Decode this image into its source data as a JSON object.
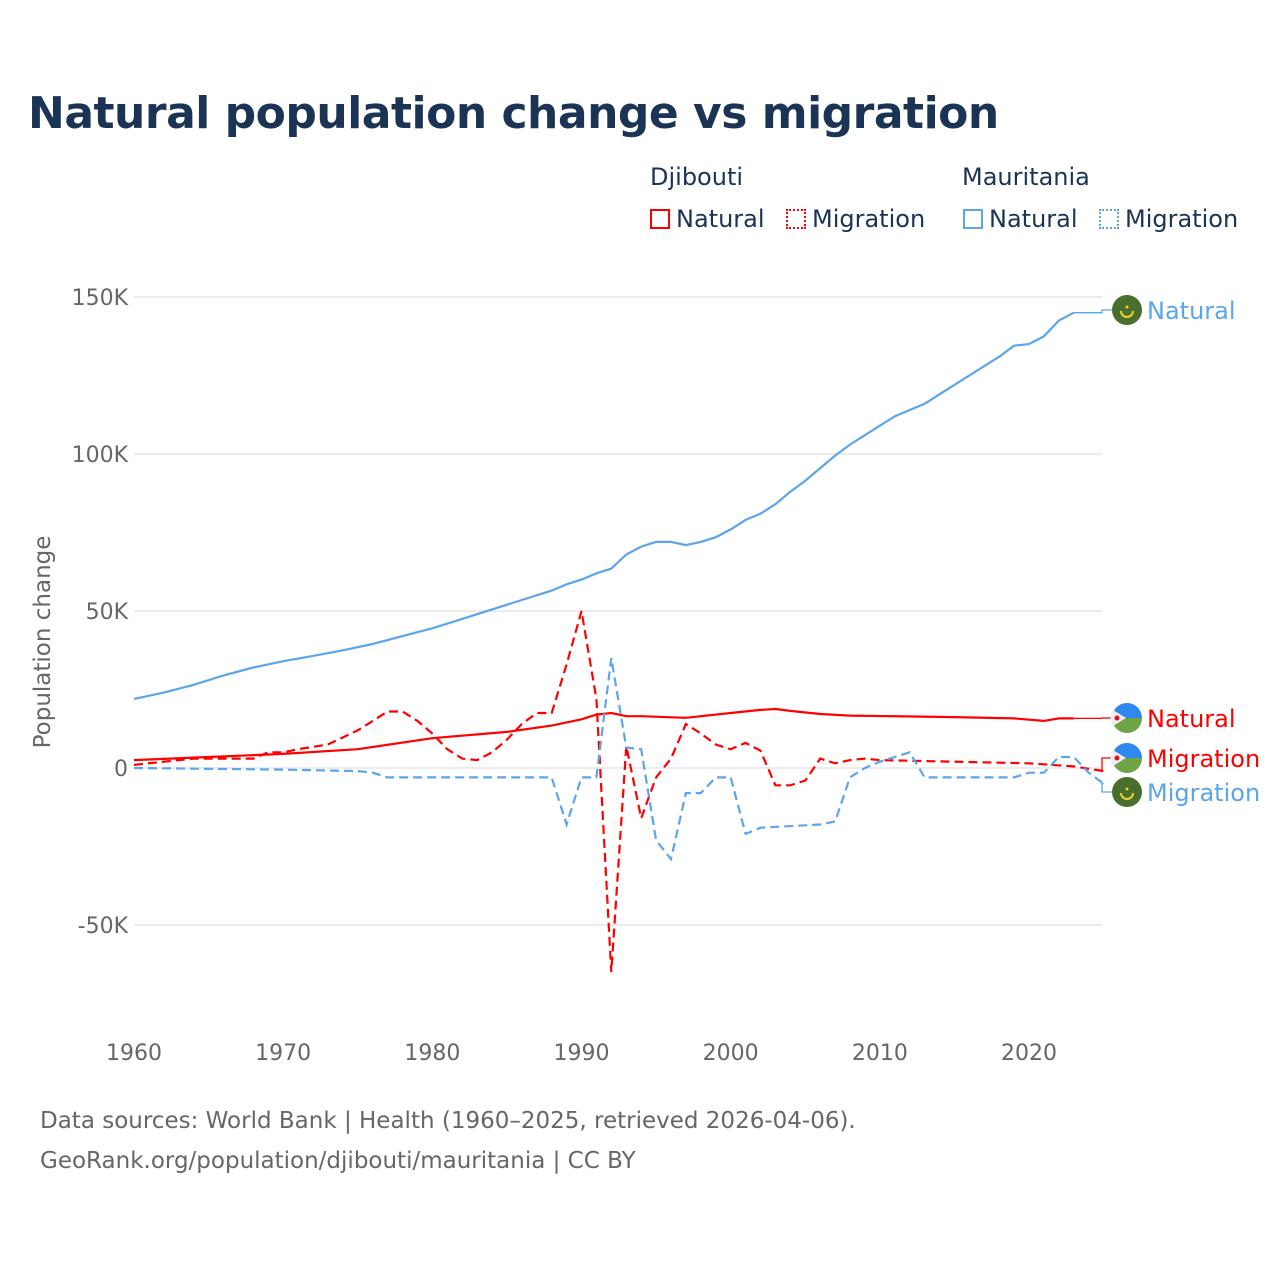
{
  "colors": {
    "djibouti": "#ff0000",
    "mauritania": "#5aa5ec",
    "title": "#1b3354"
  },
  "chart_data": {
    "type": "line",
    "title": "Natural population change vs migration",
    "xlabel": "",
    "ylabel": "Population change",
    "xlim": [
      1960,
      2025
    ],
    "ylim": [
      -70000,
      160000
    ],
    "x_ticks": [
      "1960",
      "1970",
      "1980",
      "1990",
      "2000",
      "2010",
      "2020"
    ],
    "y_ticks": [
      {
        "v": 150000,
        "label": "150K"
      },
      {
        "v": 100000,
        "label": "100K"
      },
      {
        "v": 50000,
        "label": "50K"
      },
      {
        "v": 0,
        "label": "0"
      },
      {
        "v": -50000,
        "label": "-50K"
      }
    ],
    "grid": true,
    "legend": {
      "placement": "top-right",
      "groups": [
        {
          "name": "Djibouti",
          "items": [
            "Natural",
            "Migration"
          ]
        },
        {
          "name": "Mauritania",
          "items": [
            "Natural",
            "Migration"
          ]
        }
      ]
    },
    "series": [
      {
        "name": "Mauritania Natural",
        "country": "mauritania",
        "style": "solid",
        "end_label": "Natural",
        "points": [
          [
            1960,
            22000
          ],
          [
            1962,
            24000
          ],
          [
            1964,
            26500
          ],
          [
            1966,
            29500
          ],
          [
            1968,
            32000
          ],
          [
            1970,
            34000
          ],
          [
            1972,
            35700
          ],
          [
            1974,
            37500
          ],
          [
            1976,
            39500
          ],
          [
            1978,
            42000
          ],
          [
            1980,
            44500
          ],
          [
            1982,
            47500
          ],
          [
            1984,
            50500
          ],
          [
            1986,
            53500
          ],
          [
            1988,
            56500
          ],
          [
            1989,
            58500
          ],
          [
            1990,
            60000
          ],
          [
            1991,
            62000
          ],
          [
            1992,
            63500
          ],
          [
            1993,
            68000
          ],
          [
            1994,
            70500
          ],
          [
            1995,
            72000
          ],
          [
            1996,
            72000
          ],
          [
            1997,
            71000
          ],
          [
            1998,
            72000
          ],
          [
            1999,
            73500
          ],
          [
            2000,
            76000
          ],
          [
            2001,
            79000
          ],
          [
            2002,
            81000
          ],
          [
            2003,
            84000
          ],
          [
            2004,
            88000
          ],
          [
            2005,
            91500
          ],
          [
            2006,
            95500
          ],
          [
            2007,
            99500
          ],
          [
            2008,
            103000
          ],
          [
            2009,
            106000
          ],
          [
            2010,
            109000
          ],
          [
            2011,
            112000
          ],
          [
            2012,
            114000
          ],
          [
            2013,
            116000
          ],
          [
            2014,
            119000
          ],
          [
            2015,
            122000
          ],
          [
            2016,
            125000
          ],
          [
            2017,
            128000
          ],
          [
            2018,
            131000
          ],
          [
            2019,
            134500
          ],
          [
            2020,
            135000
          ],
          [
            2021,
            137500
          ],
          [
            2022,
            142500
          ],
          [
            2023,
            145000
          ]
        ]
      },
      {
        "name": "Djibouti Natural",
        "country": "djibouti",
        "style": "solid",
        "end_label": "Natural",
        "points": [
          [
            1960,
            2500
          ],
          [
            1965,
            3500
          ],
          [
            1970,
            4500
          ],
          [
            1975,
            6000
          ],
          [
            1980,
            9500
          ],
          [
            1985,
            11500
          ],
          [
            1988,
            13500
          ],
          [
            1990,
            15500
          ],
          [
            1991,
            17000
          ],
          [
            1992,
            17500
          ],
          [
            1993,
            16500
          ],
          [
            1994,
            16500
          ],
          [
            1997,
            16000
          ],
          [
            2000,
            17500
          ],
          [
            2002,
            18500
          ],
          [
            2003,
            18800
          ],
          [
            2004,
            18200
          ],
          [
            2006,
            17200
          ],
          [
            2008,
            16700
          ],
          [
            2015,
            16200
          ],
          [
            2019,
            15800
          ],
          [
            2021,
            15000
          ],
          [
            2022,
            15800
          ],
          [
            2023,
            15800
          ]
        ]
      },
      {
        "name": "Djibouti Migration",
        "country": "djibouti",
        "style": "dashed",
        "end_label": "Migration",
        "points": [
          [
            1960,
            1000
          ],
          [
            1962,
            2000
          ],
          [
            1964,
            3000
          ],
          [
            1968,
            3000
          ],
          [
            1969,
            5000
          ],
          [
            1970,
            5000
          ],
          [
            1971,
            6000
          ],
          [
            1973,
            7500
          ],
          [
            1975,
            12000
          ],
          [
            1976,
            15000
          ],
          [
            1977,
            18000
          ],
          [
            1978,
            18000
          ],
          [
            1979,
            15000
          ],
          [
            1980,
            11000
          ],
          [
            1981,
            6000
          ],
          [
            1982,
            3000
          ],
          [
            1983,
            2500
          ],
          [
            1984,
            5000
          ],
          [
            1985,
            9000
          ],
          [
            1986,
            14000
          ],
          [
            1987,
            17500
          ],
          [
            1988,
            17500
          ],
          [
            1989,
            33000
          ],
          [
            1990,
            50000
          ],
          [
            1991,
            22000
          ],
          [
            1992,
            -65000
          ],
          [
            1993,
            7000
          ],
          [
            1994,
            -16000
          ],
          [
            1995,
            -3000
          ],
          [
            1996,
            3000
          ],
          [
            1997,
            14000
          ],
          [
            1998,
            11000
          ],
          [
            1999,
            7500
          ],
          [
            2000,
            6000
          ],
          [
            2001,
            8000
          ],
          [
            2002,
            5500
          ],
          [
            2003,
            -5500
          ],
          [
            2004,
            -5500
          ],
          [
            2005,
            -4000
          ],
          [
            2006,
            3000
          ],
          [
            2007,
            1500
          ],
          [
            2008,
            2500
          ],
          [
            2009,
            3000
          ],
          [
            2010,
            2500
          ],
          [
            2015,
            2000
          ],
          [
            2020,
            1500
          ],
          [
            2023,
            500
          ],
          [
            2025,
            -1000
          ]
        ]
      },
      {
        "name": "Mauritania Migration",
        "country": "mauritania",
        "style": "dashed",
        "end_label": "Migration",
        "points": [
          [
            1960,
            0
          ],
          [
            1970,
            -500
          ],
          [
            1975,
            -1000
          ],
          [
            1976,
            -1500
          ],
          [
            1977,
            -3000
          ],
          [
            1988,
            -3000
          ],
          [
            1989,
            -18000
          ],
          [
            1990,
            -3000
          ],
          [
            1991,
            -3000
          ],
          [
            1992,
            35000
          ],
          [
            1993,
            6500
          ],
          [
            1994,
            6000
          ],
          [
            1995,
            -23000
          ],
          [
            1996,
            -29000
          ],
          [
            1997,
            -8000
          ],
          [
            1998,
            -8000
          ],
          [
            1999,
            -3000
          ],
          [
            2000,
            -3000
          ],
          [
            2001,
            -21000
          ],
          [
            2002,
            -19000
          ],
          [
            2006,
            -18000
          ],
          [
            2007,
            -17000
          ],
          [
            2008,
            -3000
          ],
          [
            2009,
            0
          ],
          [
            2010,
            2000
          ],
          [
            2011,
            3500
          ],
          [
            2012,
            5000
          ],
          [
            2013,
            -3000
          ],
          [
            2019,
            -3000
          ],
          [
            2020,
            -1500
          ],
          [
            2021,
            -1500
          ],
          [
            2022,
            3500
          ],
          [
            2023,
            3500
          ],
          [
            2024,
            -1500
          ],
          [
            2025,
            -5000
          ]
        ]
      }
    ]
  },
  "legend": {
    "djibouti": "Djibouti",
    "mauritania": "Mauritania",
    "natural": "Natural",
    "migration": "Migration"
  },
  "footer": {
    "line1": "Data sources: World Bank | Health (1960–2025, retrieved 2026-04-06).",
    "line2": "GeoRank.org/population/djibouti/mauritania | CC BY"
  }
}
